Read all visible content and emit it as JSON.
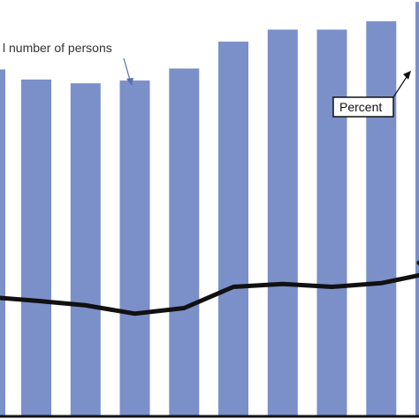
{
  "chart_data": {
    "type": "bar",
    "title": "",
    "xlabel": "",
    "ylabel": "",
    "ylim": [
      0,
      450
    ],
    "grid": false,
    "categories": [
      "",
      "",
      "",
      "",
      "",
      "",
      "",
      "",
      ""
    ],
    "series": [
      {
        "name": "l number of persons",
        "type": "bar",
        "values": [
          364,
          360,
          363,
          376,
          405,
          418,
          418,
          427,
          448
        ],
        "color": "#7b8fc8"
      },
      {
        "name": "Percent",
        "type": "line",
        "y_left": 128,
        "values": [
          125,
          120,
          111,
          117,
          140,
          143,
          140,
          144,
          155
        ],
        "y_right": 166,
        "color": "#111111"
      }
    ],
    "annotations": [
      {
        "text": "l number of persons",
        "points_to": "bar"
      },
      {
        "text": "Percent",
        "points_to": "line",
        "boxed": true
      }
    ]
  }
}
